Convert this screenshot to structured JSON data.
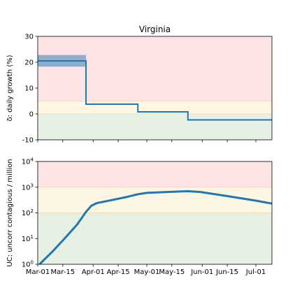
{
  "chart_data": [
    {
      "type": "line",
      "subtype": "step",
      "title": "Virginia",
      "ylabel": "δ: daily growth (%)",
      "xlim": [
        "2020-03-01",
        "2020-07-10"
      ],
      "ylim": [
        -10,
        30
      ],
      "yticks": [
        -10,
        0,
        10,
        20,
        30
      ],
      "bands": [
        {
          "from": -10,
          "to": 0,
          "color": "#e6f0e3"
        },
        {
          "from": 0,
          "to": 5,
          "color": "#fdf6e3"
        },
        {
          "from": 5,
          "to": 30,
          "color": "#fde4e4"
        }
      ],
      "band_lines": [
        0,
        5
      ],
      "series": [
        {
          "color": "#1f77b4",
          "steps": [
            {
              "start": "2020-03-01",
              "end": "2020-03-28",
              "value": 20.5,
              "ci": [
                18.3,
                22.8
              ]
            },
            {
              "start": "2020-03-28",
              "end": "2020-04-26",
              "value": 3.8
            },
            {
              "start": "2020-04-26",
              "end": "2020-05-24",
              "value": 0.8
            },
            {
              "start": "2020-05-24",
              "end": "2020-07-10",
              "value": -2.3
            }
          ]
        }
      ]
    },
    {
      "type": "line",
      "ylabel": "UC: uncorr contagious / million",
      "yscale": "log",
      "ylim": [
        1,
        10000
      ],
      "yticks": [
        {
          "value": 1,
          "base": "10",
          "exp": "0"
        },
        {
          "value": 10,
          "base": "10",
          "exp": "1"
        },
        {
          "value": 100,
          "base": "10",
          "exp": "2"
        },
        {
          "value": 1000,
          "base": "10",
          "exp": "3"
        },
        {
          "value": 10000,
          "base": "10",
          "exp": "4"
        }
      ],
      "xlim": [
        "2020-03-01",
        "2020-07-10"
      ],
      "xticks": [
        {
          "date": "2020-03-01",
          "label": "Mar-01"
        },
        {
          "date": "2020-03-15",
          "label": "Mar-15"
        },
        {
          "date": "2020-04-01",
          "label": "Apr-01"
        },
        {
          "date": "2020-04-15",
          "label": "Apr-15"
        },
        {
          "date": "2020-05-01",
          "label": "May-01"
        },
        {
          "date": "2020-05-15",
          "label": "May-15"
        },
        {
          "date": "2020-06-01",
          "label": "Jun-01"
        },
        {
          "date": "2020-06-15",
          "label": "Jun-15"
        },
        {
          "date": "2020-07-01",
          "label": "Jul-01"
        }
      ],
      "bands": [
        {
          "from": 1,
          "to": 100,
          "color": "#e6f0e3"
        },
        {
          "from": 100,
          "to": 1000,
          "color": "#fdf6e3"
        },
        {
          "from": 1000,
          "to": 10000,
          "color": "#fde4e4"
        }
      ],
      "band_lines": [
        100,
        1000
      ],
      "series": [
        {
          "color": "#1f77b4",
          "points": [
            {
              "x": "2020-03-02",
              "y": 1.0
            },
            {
              "x": "2020-03-09",
              "y": 3.0
            },
            {
              "x": "2020-03-16",
              "y": 10
            },
            {
              "x": "2020-03-23",
              "y": 35
            },
            {
              "x": "2020-03-28",
              "y": 110
            },
            {
              "x": "2020-03-31",
              "y": 190
            },
            {
              "x": "2020-04-03",
              "y": 240
            },
            {
              "x": "2020-04-10",
              "y": 300
            },
            {
              "x": "2020-04-20",
              "y": 420
            },
            {
              "x": "2020-04-26",
              "y": 530
            },
            {
              "x": "2020-05-01",
              "y": 600
            },
            {
              "x": "2020-05-10",
              "y": 640
            },
            {
              "x": "2020-05-24",
              "y": 700
            },
            {
              "x": "2020-05-31",
              "y": 650
            },
            {
              "x": "2020-06-15",
              "y": 450
            },
            {
              "x": "2020-07-01",
              "y": 300
            },
            {
              "x": "2020-07-10",
              "y": 230
            }
          ]
        }
      ]
    }
  ]
}
